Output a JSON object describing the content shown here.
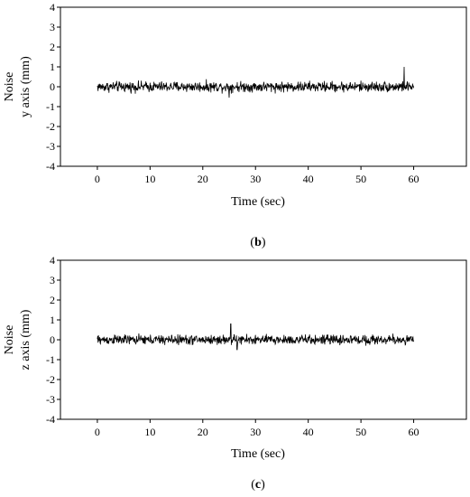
{
  "chart_data": [
    {
      "type": "line",
      "panel": "b",
      "caption": "(b)",
      "caption_letter": "b",
      "xlabel": "Time (sec)",
      "ylabel_line1": "Noise",
      "ylabel_line2": "y axis (mm)",
      "xlim": [
        -7,
        70
      ],
      "ylim": [
        -4,
        4
      ],
      "xticks": [
        0,
        10,
        20,
        30,
        40,
        50,
        60
      ],
      "yticks": [
        4,
        3,
        2,
        1,
        0,
        -1,
        -2,
        -3,
        -4
      ],
      "ytick_labels": [
        "4",
        "3",
        "2",
        "1",
        "0",
        "-1",
        "-2",
        "-3",
        "-4"
      ],
      "grid": false,
      "series": [
        {
          "x_range": [
            0,
            60
          ],
          "mean": 0.0,
          "amplitude": 0.3,
          "peaks": [
            {
              "x": 58.2,
              "y": 1.0
            },
            {
              "x": 25.0,
              "y": -0.55
            }
          ]
        }
      ]
    },
    {
      "type": "line",
      "panel": "c",
      "caption": "(c)",
      "caption_letter": "c",
      "xlabel": "Time (sec)",
      "ylabel_line1": "Noise",
      "ylabel_line2": "z axis (mm)",
      "xlim": [
        -7,
        70
      ],
      "ylim": [
        -4,
        4
      ],
      "xticks": [
        0,
        10,
        20,
        30,
        40,
        50,
        60
      ],
      "yticks": [
        4,
        3,
        2,
        1,
        0,
        -1,
        -2,
        -3,
        -4
      ],
      "ytick_labels": [
        "4",
        "3",
        "2",
        "1",
        "0",
        "-1",
        "-2",
        "-3",
        "-4"
      ],
      "grid": false,
      "series": [
        {
          "x_range": [
            0,
            60
          ],
          "mean": 0.0,
          "amplitude": 0.28,
          "peaks": [
            {
              "x": 25.3,
              "y": 0.8
            },
            {
              "x": 26.5,
              "y": -0.5
            }
          ]
        }
      ]
    }
  ]
}
